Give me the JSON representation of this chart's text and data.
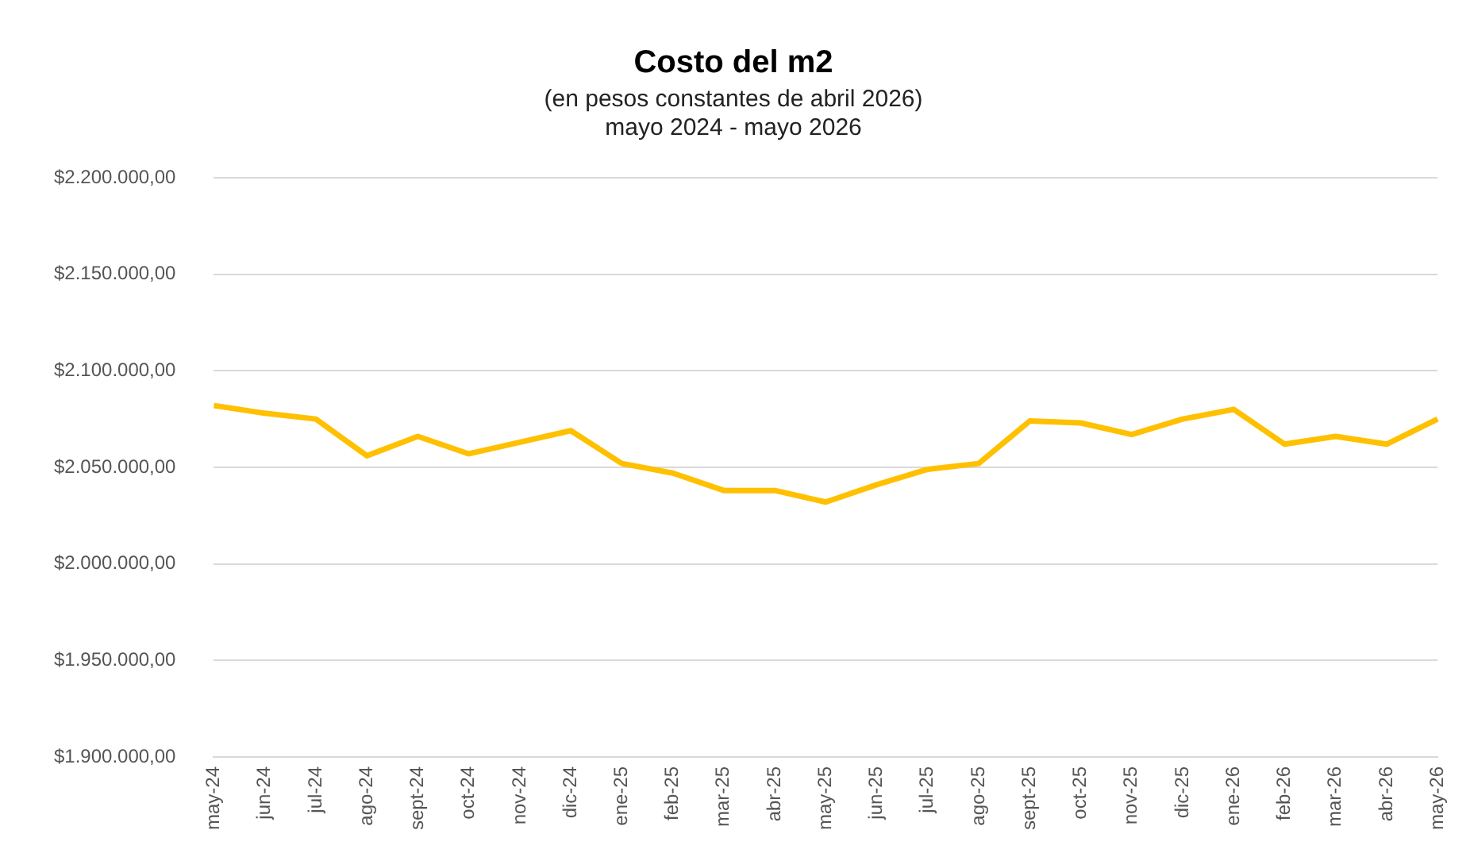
{
  "chart_data": {
    "type": "line",
    "title": "Costo del m2",
    "subtitle": "(en pesos constantes de abril 2026)\nmayo 2024 - mayo 2026",
    "categories": [
      "may-24",
      "jun-24",
      "jul-24",
      "ago-24",
      "sept-24",
      "oct-24",
      "nov-24",
      "dic-24",
      "ene-25",
      "feb-25",
      "mar-25",
      "abr-25",
      "may-25",
      "jun-25",
      "jul-25",
      "ago-25",
      "sept-25",
      "oct-25",
      "nov-25",
      "dic-25",
      "ene-26",
      "feb-26",
      "mar-26",
      "abr-26",
      "may-26"
    ],
    "series": [
      {
        "color": "#ffc000",
        "values": [
          2082000,
          2078000,
          2075000,
          2056000,
          2066000,
          2057000,
          2063000,
          2069000,
          2052000,
          2047000,
          2038000,
          2038000,
          2032000,
          2041000,
          2049000,
          2052000,
          2074000,
          2073000,
          2067000,
          2075000,
          2080000,
          2062000,
          2066000,
          2062000,
          2075000
        ]
      }
    ],
    "ylim": [
      1900000,
      2200000
    ],
    "yticks": [
      {
        "value": 1900000,
        "label": "$1.900.000,00"
      },
      {
        "value": 1950000,
        "label": "$1.950.000,00"
      },
      {
        "value": 2000000,
        "label": "$2.000.000,00"
      },
      {
        "value": 2050000,
        "label": "$2.050.000,00"
      },
      {
        "value": 2100000,
        "label": "$2.100.000,00"
      },
      {
        "value": 2150000,
        "label": "$2.150.000,00"
      },
      {
        "value": 2200000,
        "label": "$2.200.000,00"
      }
    ],
    "grid": "y",
    "legend": false,
    "marker": "none",
    "line_style": "solid"
  }
}
